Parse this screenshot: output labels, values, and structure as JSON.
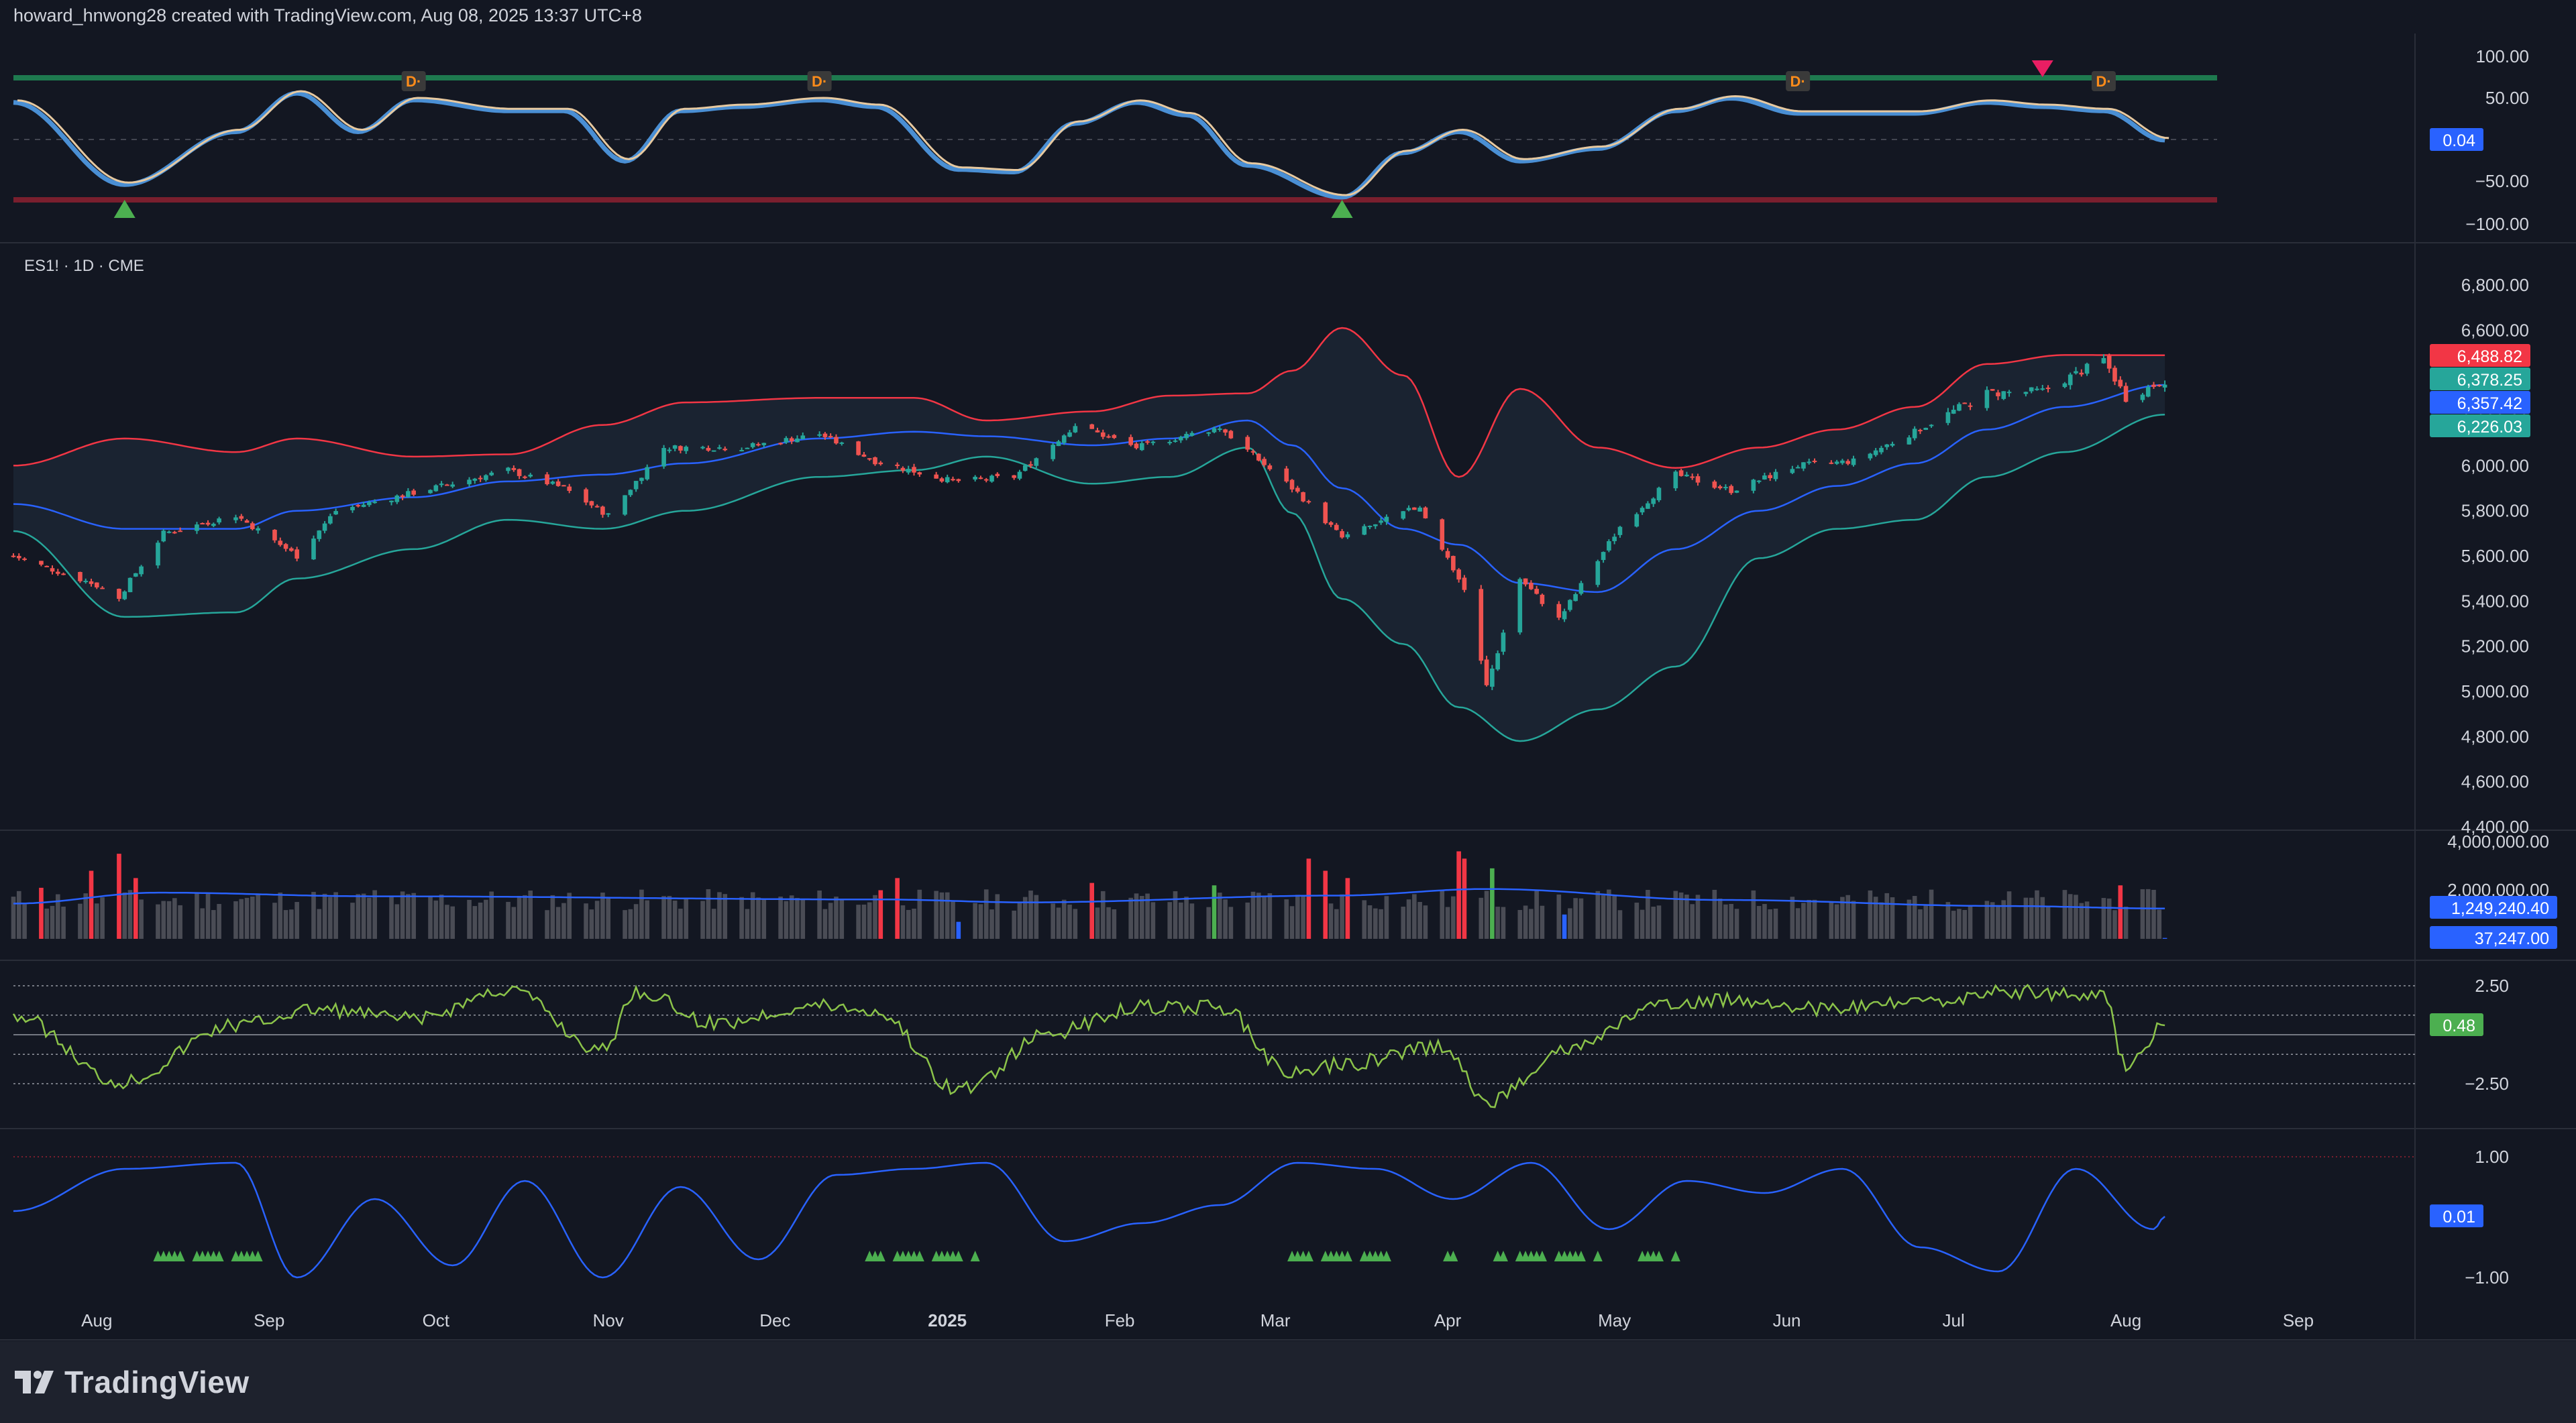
{
  "header": {
    "text": "howard_hnwong28 created with TradingView.com, Aug 08, 2025 13:37 UTC+8"
  },
  "brand": {
    "name": "TradingView"
  },
  "symbol": {
    "label": "ES1! · 1D · CME"
  },
  "colors": {
    "background": "#131722",
    "panel_border": "#2a2e39",
    "bull": "#26a69a",
    "bear": "#ef5350",
    "upper_band": "#f23645",
    "lower_band": "#26a69a",
    "basis": "#2962ff",
    "osc_green": "#8bc34a",
    "stoch_blue": "#4a8fd4",
    "stoch_tan": "#e7c9a0",
    "volume_gray": "#4a4c55",
    "triangle_green": "#4caf50"
  },
  "chart_data": [
    {
      "type": "line",
      "name": "stochastic_oscillator_pane",
      "y_ticks": [
        "100.00",
        "50.00",
        "−50.00",
        "−100.00"
      ],
      "ylim": [
        -100,
        100
      ],
      "last_value": "0.04",
      "marker_labels": [
        "D·",
        "D·",
        "D·",
        "D·"
      ],
      "divergence_marker_x": [
        "2024-09-27",
        "2024-12-09",
        "2025-06-03",
        "2025-07-28"
      ],
      "signal_up_triangles_x": [
        "2024-08-06",
        "2025-03-13"
      ],
      "signal_down_triangles_x": [
        "2025-07-17"
      ],
      "x": [
        "2024-07-17",
        "2024-08-06",
        "2024-08-26",
        "2024-09-06",
        "2024-09-17",
        "2024-09-27",
        "2024-10-14",
        "2024-10-24",
        "2024-11-04",
        "2024-11-14",
        "2024-11-25",
        "2024-12-09",
        "2024-12-19",
        "2025-01-03",
        "2025-01-13",
        "2025-01-24",
        "2025-02-04",
        "2025-02-13",
        "2025-02-24",
        "2025-03-13",
        "2025-03-24",
        "2025-04-03",
        "2025-04-14",
        "2025-04-28",
        "2025-05-12",
        "2025-05-22",
        "2025-06-03",
        "2025-06-13",
        "2025-06-24",
        "2025-07-07",
        "2025-07-17",
        "2025-07-28",
        "2025-08-08"
      ],
      "values": [
        45,
        -53,
        10,
        56,
        10,
        48,
        35,
        35,
        -25,
        35,
        40,
        48,
        40,
        -35,
        -38,
        20,
        45,
        30,
        -30,
        -68,
        -15,
        10,
        -25,
        -10,
        35,
        50,
        32,
        32,
        32,
        45,
        40,
        35,
        0.04
      ]
    },
    {
      "type": "candlestick",
      "name": "ES1! · 1D · CME",
      "y_ticks": [
        "6,800.00",
        "6,600.00",
        "6,400.00",
        "6,200.00",
        "6,000.00",
        "5,800.00",
        "5,600.00",
        "5,400.00",
        "5,200.00",
        "5,000.00",
        "4,800.00",
        "4,600.00",
        "4,400.00"
      ],
      "ylim": [
        4400,
        6900
      ],
      "x_ticks": [
        "Aug",
        "Sep",
        "Oct",
        "Nov",
        "Dec",
        "2025",
        "Feb",
        "Mar",
        "Apr",
        "May",
        "Jun",
        "Jul",
        "Aug",
        "Sep"
      ],
      "x_range": [
        "2024-07-17",
        "2025-09-22"
      ],
      "price_labels": [
        {
          "value": "6,488.82",
          "color": "#f23645"
        },
        {
          "value": "6,378.25",
          "color": "#26a69a"
        },
        {
          "value": "6,357.42",
          "color": "#2962ff"
        },
        {
          "value": "6,226.03",
          "color": "#26a69a"
        }
      ],
      "series": [
        {
          "name": "close",
          "x": [
            "2024-07-17",
            "2024-07-31",
            "2024-08-05",
            "2024-08-13",
            "2024-08-26",
            "2024-09-06",
            "2024-09-13",
            "2024-09-27",
            "2024-10-14",
            "2024-10-24",
            "2024-11-01",
            "2024-11-11",
            "2024-11-25",
            "2024-12-09",
            "2024-12-19",
            "2025-01-02",
            "2025-01-13",
            "2025-01-24",
            "2025-02-04",
            "2025-02-19",
            "2025-03-05",
            "2025-03-13",
            "2025-03-27",
            "2025-04-04",
            "2025-04-08",
            "2025-04-14",
            "2025-04-21",
            "2025-05-02",
            "2025-05-12",
            "2025-05-22",
            "2025-06-03",
            "2025-06-13",
            "2025-06-24",
            "2025-07-07",
            "2025-07-17",
            "2025-07-28",
            "2025-08-01",
            "2025-08-08"
          ],
          "values": [
            5600,
            5480,
            5420,
            5700,
            5780,
            5600,
            5800,
            5880,
            5980,
            5900,
            5780,
            6080,
            6080,
            6140,
            6020,
            5930,
            5950,
            6180,
            6080,
            6170,
            5880,
            5680,
            5820,
            5450,
            5020,
            5500,
            5320,
            5730,
            5960,
            5890,
            6000,
            6020,
            6150,
            6320,
            6330,
            6470,
            6300,
            6378.25
          ]
        },
        {
          "name": "upper_band",
          "x": [
            "2024-07-17",
            "2024-08-06",
            "2024-08-26",
            "2024-09-06",
            "2024-09-27",
            "2024-10-14",
            "2024-10-31",
            "2024-11-15",
            "2024-12-09",
            "2024-12-26",
            "2025-01-08",
            "2025-01-27",
            "2025-02-10",
            "2025-02-24",
            "2025-03-04",
            "2025-03-13",
            "2025-03-24",
            "2025-04-03",
            "2025-04-14",
            "2025-04-28",
            "2025-05-12",
            "2025-05-27",
            "2025-06-10",
            "2025-06-24",
            "2025-07-07",
            "2025-07-21",
            "2025-08-08"
          ],
          "values": [
            6000,
            6120,
            6060,
            6120,
            6040,
            6050,
            6180,
            6280,
            6300,
            6300,
            6200,
            6240,
            6310,
            6320,
            6420,
            6610,
            6400,
            5950,
            6340,
            6080,
            5990,
            6080,
            6160,
            6260,
            6450,
            6490,
            6488.82
          ]
        },
        {
          "name": "basis",
          "x": [
            "2024-07-17",
            "2024-08-06",
            "2024-08-26",
            "2024-09-06",
            "2024-09-27",
            "2024-10-14",
            "2024-10-31",
            "2024-11-15",
            "2024-12-09",
            "2024-12-26",
            "2025-01-08",
            "2025-01-27",
            "2025-02-10",
            "2025-02-24",
            "2025-03-04",
            "2025-03-13",
            "2025-03-24",
            "2025-04-03",
            "2025-04-14",
            "2025-04-28",
            "2025-05-12",
            "2025-05-27",
            "2025-06-10",
            "2025-06-24",
            "2025-07-07",
            "2025-07-21",
            "2025-08-08"
          ],
          "values": [
            5830,
            5720,
            5720,
            5800,
            5860,
            5930,
            5960,
            6010,
            6120,
            6150,
            6130,
            6090,
            6120,
            6200,
            6090,
            5900,
            5720,
            5650,
            5480,
            5440,
            5630,
            5800,
            5910,
            6010,
            6160,
            6260,
            6357.42
          ]
        },
        {
          "name": "lower_band",
          "x": [
            "2024-07-17",
            "2024-08-06",
            "2024-08-26",
            "2024-09-06",
            "2024-09-27",
            "2024-10-14",
            "2024-10-31",
            "2024-11-15",
            "2024-12-09",
            "2024-12-26",
            "2025-01-08",
            "2025-01-27",
            "2025-02-10",
            "2025-02-24",
            "2025-03-04",
            "2025-03-13",
            "2025-03-24",
            "2025-04-03",
            "2025-04-14",
            "2025-04-28",
            "2025-05-12",
            "2025-05-27",
            "2025-06-10",
            "2025-06-24",
            "2025-07-07",
            "2025-07-21",
            "2025-08-08"
          ],
          "values": [
            5710,
            5330,
            5350,
            5500,
            5630,
            5760,
            5720,
            5800,
            5950,
            5980,
            6040,
            5920,
            5950,
            6080,
            5790,
            5410,
            5210,
            4930,
            4780,
            4920,
            5110,
            5590,
            5720,
            5760,
            5950,
            6060,
            6226.03
          ]
        }
      ]
    },
    {
      "type": "bar",
      "name": "volume_pane",
      "y_ticks": [
        "4,000,000.00",
        "2,000,000.00"
      ],
      "ylim": [
        0,
        4200000
      ],
      "labels": [
        "1,249,240.40",
        "37,247.00"
      ],
      "x": [
        "2024-07-22",
        "2024-07-31",
        "2024-08-05",
        "2024-08-08",
        "2024-09-20",
        "2024-12-20",
        "2024-12-23",
        "2025-01-03",
        "2025-01-27",
        "2025-02-18",
        "2025-03-07",
        "2025-03-10",
        "2025-03-14",
        "2025-04-03",
        "2025-04-04",
        "2025-04-09",
        "2025-04-22",
        "2025-07-31",
        "2025-08-08"
      ],
      "values": [
        2100000,
        2800000,
        3500000,
        2500000,
        2000000,
        2000000,
        2500000,
        700000,
        2300000,
        2200000,
        3300000,
        2800000,
        2500000,
        3600000,
        3300000,
        2900000,
        1000000,
        2200000,
        37247
      ]
    },
    {
      "type": "line",
      "name": "oscillator_pane",
      "y_ticks": [
        "2.50",
        "−2.50"
      ],
      "ylim": [
        -4.5,
        4.5
      ],
      "last_value": "0.48",
      "x": [
        "2024-07-17",
        "2024-08-05",
        "2024-08-26",
        "2024-09-10",
        "2024-09-27",
        "2024-10-14",
        "2024-10-31",
        "2024-11-06",
        "2024-11-20",
        "2024-12-09",
        "2024-12-19",
        "2025-01-03",
        "2025-01-20",
        "2025-02-04",
        "2025-02-19",
        "2025-03-04",
        "2025-03-13",
        "2025-03-31",
        "2025-04-08",
        "2025-04-22",
        "2025-05-09",
        "2025-05-22",
        "2025-06-10",
        "2025-06-24",
        "2025-07-10",
        "2025-07-28",
        "2025-08-01",
        "2025-08-08"
      ],
      "values": [
        1,
        -2.4,
        0.5,
        1.3,
        0.8,
        2.3,
        -0.8,
        2.2,
        0.6,
        1.5,
        1.2,
        -2.8,
        0.1,
        1.4,
        1.4,
        -2,
        -1.5,
        -0.6,
        -3.4,
        -0.8,
        1.4,
        1.8,
        1.3,
        1.6,
        2.2,
        2,
        -1.6,
        0.48
      ]
    },
    {
      "type": "line",
      "name": "normalized_oscillator_pane",
      "y_ticks": [
        "1.00",
        "−1.00"
      ],
      "ylim": [
        -1.2,
        1.2
      ],
      "last_value": "0.01",
      "signal_triangle_runs": [
        [
          "2024-08-12",
          "2024-08-30"
        ],
        [
          "2024-12-18",
          "2025-01-06"
        ],
        [
          "2025-03-04",
          "2025-03-21"
        ],
        [
          "2025-04-01",
          "2025-04-02"
        ],
        [
          "2025-04-10",
          "2025-04-28"
        ],
        [
          "2025-05-06",
          "2025-05-12"
        ]
      ],
      "x": [
        "2024-07-17",
        "2024-08-06",
        "2024-08-26",
        "2024-09-06",
        "2024-09-20",
        "2024-10-04",
        "2024-10-17",
        "2024-10-31",
        "2024-11-14",
        "2024-11-28",
        "2024-12-12",
        "2024-12-26",
        "2025-01-08",
        "2025-01-22",
        "2025-02-05",
        "2025-02-19",
        "2025-03-05",
        "2025-03-19",
        "2025-04-02",
        "2025-04-16",
        "2025-04-30",
        "2025-05-14",
        "2025-05-28",
        "2025-06-11",
        "2025-06-25",
        "2025-07-09",
        "2025-07-23",
        "2025-08-06",
        "2025-08-08"
      ],
      "values": [
        0.1,
        0.8,
        0.9,
        -1.0,
        0.3,
        -0.8,
        0.6,
        -1.0,
        0.5,
        -0.7,
        0.7,
        0.8,
        0.9,
        -0.4,
        -0.1,
        0.2,
        0.9,
        0.8,
        0.3,
        0.9,
        -0.2,
        0.6,
        0.4,
        0.8,
        -0.5,
        -0.9,
        0.8,
        -0.2,
        0.01
      ]
    }
  ]
}
